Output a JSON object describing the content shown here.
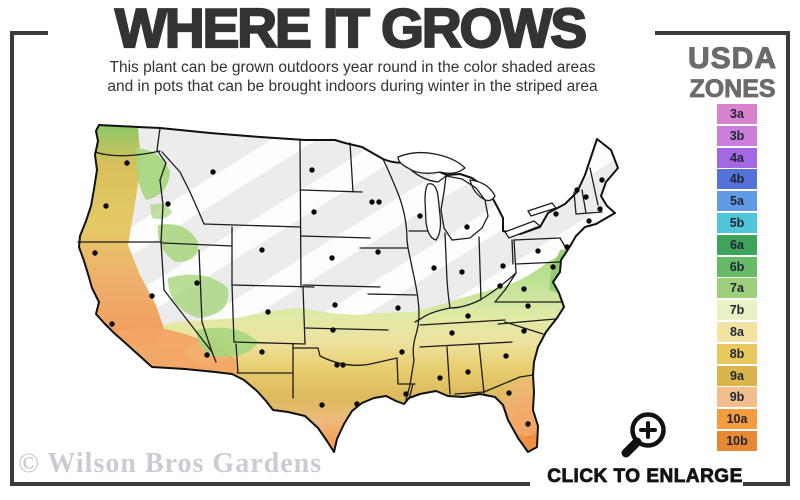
{
  "header": {
    "title": "WHERE IT GROWS",
    "subtitle_line1": "This plant can be grown outdoors year round in the color shaded areas",
    "subtitle_line2": "and in pots that can be brought indoors during winter in the striped area"
  },
  "legend": {
    "title_line1": "USDA",
    "title_line2": "ZONES",
    "zones": [
      {
        "label": "3a",
        "color": "#d983cf"
      },
      {
        "label": "3b",
        "color": "#cb7ed9"
      },
      {
        "label": "4a",
        "color": "#a368e2"
      },
      {
        "label": "4b",
        "color": "#5373d9"
      },
      {
        "label": "5a",
        "color": "#619be5"
      },
      {
        "label": "5b",
        "color": "#50c7d9"
      },
      {
        "label": "6a",
        "color": "#3ea35b"
      },
      {
        "label": "6b",
        "color": "#67ba67"
      },
      {
        "label": "7a",
        "color": "#9ed07c"
      },
      {
        "label": "7b",
        "color": "#e9f1c5"
      },
      {
        "label": "8a",
        "color": "#f2e3a2"
      },
      {
        "label": "8b",
        "color": "#e9c95d"
      },
      {
        "label": "9a",
        "color": "#d9b54b"
      },
      {
        "label": "9b",
        "color": "#f3be8d"
      },
      {
        "label": "10a",
        "color": "#f49c3e"
      },
      {
        "label": "10b",
        "color": "#e78932"
      }
    ]
  },
  "map": {
    "watermark": "© Wilson Bros Gardens",
    "enlarge_label": "CLICK TO ENLARGE"
  },
  "colors": {
    "frame": "#3a3a3a",
    "title_text": "#333333",
    "legend_title_text": "#6b6b6b",
    "watermark_text": "#c9cdd3",
    "map_gray": "#ececec"
  }
}
